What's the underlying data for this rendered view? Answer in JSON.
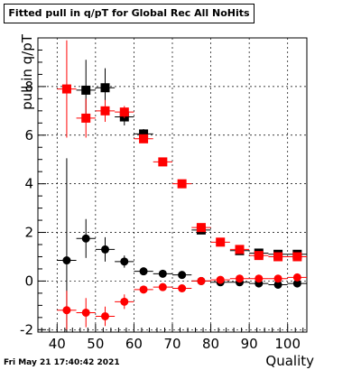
{
  "title": "Fitted pull in q/pT for Global Rec All NoHits",
  "timestamp": "Fri May 21 17:40:42 2021",
  "colors": {
    "black_series": "#000000",
    "red_series": "#ff0000",
    "axis": "#000000"
  },
  "chart_data": {
    "type": "scatter",
    "title": "Fitted pull in q/pT for Global Rec All NoHits",
    "xlabel": "Quality",
    "ylabel": "pull in q/pT",
    "xlim": [
      35,
      105
    ],
    "ylim": [
      -2.1,
      10.0
    ],
    "xticks": [
      40,
      50,
      60,
      70,
      80,
      90,
      100
    ],
    "yticks": [
      -2,
      0,
      2,
      4,
      6,
      8
    ],
    "grid": true,
    "legend": "none",
    "series": [
      {
        "color": "#000000",
        "marker": "square",
        "points": [
          {
            "x": 47.5,
            "y": 7.85,
            "yerr": 1.25
          },
          {
            "x": 52.5,
            "y": 7.95,
            "yerr": 0.8
          },
          {
            "x": 57.5,
            "y": 6.75,
            "yerr": 0.35
          },
          {
            "x": 62.5,
            "y": 6.05,
            "yerr": 0.2
          },
          {
            "x": 77.5,
            "y": 2.1,
            "yerr": 0.1
          },
          {
            "x": 87.5,
            "y": 1.25,
            "yerr": 0.1
          },
          {
            "x": 92.5,
            "y": 1.15,
            "yerr": 0.08
          },
          {
            "x": 97.5,
            "y": 1.1,
            "yerr": 0.08
          },
          {
            "x": 102.5,
            "y": 1.1,
            "yerr": 0.08
          }
        ]
      },
      {
        "color": "#ff0000",
        "marker": "square",
        "points": [
          {
            "x": 42.5,
            "y": 7.9,
            "yerr": 2.0
          },
          {
            "x": 47.5,
            "y": 6.7,
            "yerr": 0.8
          },
          {
            "x": 52.5,
            "y": 7.0,
            "yerr": 0.45
          },
          {
            "x": 57.5,
            "y": 6.95,
            "yerr": 0.25
          },
          {
            "x": 62.5,
            "y": 5.85,
            "yerr": 0.15
          },
          {
            "x": 67.5,
            "y": 4.9,
            "yerr": 0.1
          },
          {
            "x": 72.5,
            "y": 4.0,
            "yerr": 0.08
          },
          {
            "x": 77.5,
            "y": 2.2,
            "yerr": 0.08
          },
          {
            "x": 82.5,
            "y": 1.6,
            "yerr": 0.07
          },
          {
            "x": 87.5,
            "y": 1.3,
            "yerr": 0.07
          },
          {
            "x": 92.5,
            "y": 1.05,
            "yerr": 0.07
          },
          {
            "x": 97.5,
            "y": 1.0,
            "yerr": 0.07
          },
          {
            "x": 102.5,
            "y": 1.0,
            "yerr": 0.07
          }
        ]
      },
      {
        "color": "#000000",
        "marker": "circle",
        "points": [
          {
            "x": 42.5,
            "y": 0.85,
            "yerr": 4.2
          },
          {
            "x": 47.5,
            "y": 1.75,
            "yerr": 0.8
          },
          {
            "x": 52.5,
            "y": 1.3,
            "yerr": 0.5
          },
          {
            "x": 57.5,
            "y": 0.8,
            "yerr": 0.25
          },
          {
            "x": 62.5,
            "y": 0.4,
            "yerr": 0.15
          },
          {
            "x": 67.5,
            "y": 0.3,
            "yerr": 0.1
          },
          {
            "x": 72.5,
            "y": 0.25,
            "yerr": 0.08
          },
          {
            "x": 77.5,
            "y": 0.0,
            "yerr": 0.06
          },
          {
            "x": 82.5,
            "y": -0.05,
            "yerr": 0.05
          },
          {
            "x": 87.5,
            "y": -0.05,
            "yerr": 0.05
          },
          {
            "x": 92.5,
            "y": -0.1,
            "yerr": 0.05
          },
          {
            "x": 97.5,
            "y": -0.15,
            "yerr": 0.05
          },
          {
            "x": 102.5,
            "y": -0.1,
            "yerr": 0.05
          }
        ]
      },
      {
        "color": "#ff0000",
        "marker": "circle",
        "points": [
          {
            "x": 42.5,
            "y": -1.2,
            "yerr": 0.8
          },
          {
            "x": 47.5,
            "y": -1.3,
            "yerr": 0.6
          },
          {
            "x": 52.5,
            "y": -1.45,
            "yerr": 0.4
          },
          {
            "x": 57.5,
            "y": -0.85,
            "yerr": 0.3
          },
          {
            "x": 62.5,
            "y": -0.35,
            "yerr": 0.15
          },
          {
            "x": 67.5,
            "y": -0.25,
            "yerr": 0.1
          },
          {
            "x": 72.5,
            "y": -0.3,
            "yerr": 0.08
          },
          {
            "x": 77.5,
            "y": 0.0,
            "yerr": 0.06
          },
          {
            "x": 82.5,
            "y": 0.05,
            "yerr": 0.05
          },
          {
            "x": 87.5,
            "y": 0.1,
            "yerr": 0.05
          },
          {
            "x": 92.5,
            "y": 0.1,
            "yerr": 0.05
          },
          {
            "x": 97.5,
            "y": 0.1,
            "yerr": 0.05
          },
          {
            "x": 102.5,
            "y": 0.15,
            "yerr": 0.05
          }
        ]
      }
    ]
  }
}
